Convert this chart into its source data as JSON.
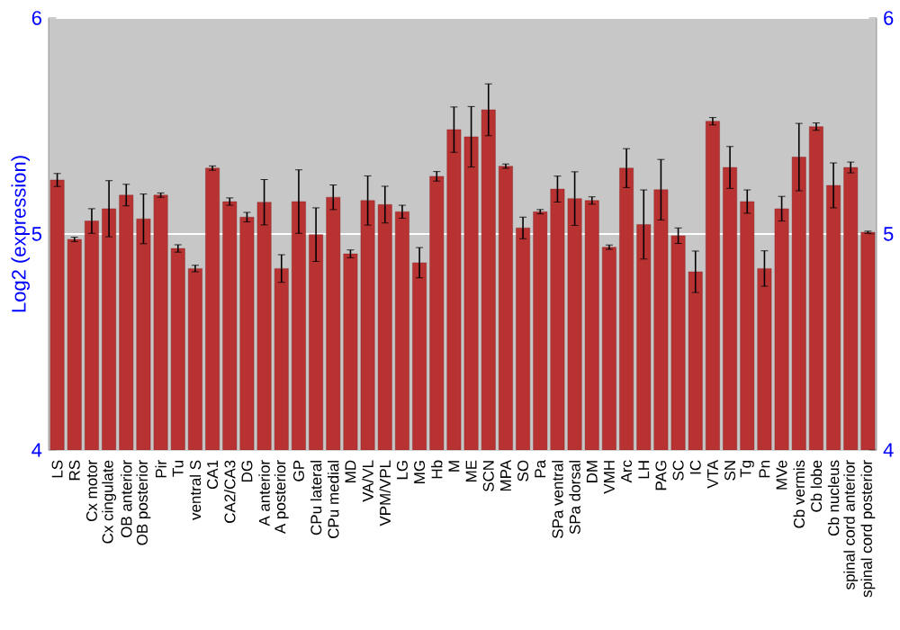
{
  "chart_data": {
    "type": "bar",
    "ylabel": "Log2 (expression)",
    "color": "#b83232",
    "categories": [
      "LS",
      "RS",
      "Cx motor",
      "Cx cingulate",
      "OB anterior",
      "OB posterior",
      "Pir",
      "Tu",
      "ventral S",
      "CA1",
      "CA2/CA3",
      "DG",
      "A anterior",
      "A posterior",
      "GP",
      "CPu lateral",
      "CPu medial",
      "MD",
      "VA/VL",
      "VPM/VPL",
      "LG",
      "MG",
      "Hb",
      "M",
      "ME",
      "SCN",
      "MPA",
      "SO",
      "Pa",
      "SPa ventral",
      "SPa dorsal",
      "DM",
      "VMH",
      "Arc",
      "LH",
      "PAG",
      "SC",
      "IC",
      "VTA",
      "SN",
      "Tg",
      "Pn",
      "MVe",
      "Cb vermis",
      "Cb lobe",
      "Cb nucleus",
      "spinal cord anterior",
      "spinal cord posterior"
    ],
    "values": [
      5.25,
      4.975,
      5.06,
      5.117,
      5.18,
      5.07,
      5.18,
      4.933,
      4.84,
      5.305,
      5.15,
      5.078,
      5.147,
      4.84,
      5.15,
      4.997,
      5.17,
      4.908,
      5.155,
      5.136,
      5.103,
      4.867,
      5.267,
      5.483,
      5.45,
      5.575,
      5.314,
      5.028,
      5.103,
      5.208,
      5.164,
      5.155,
      4.939,
      5.305,
      5.044,
      5.205,
      4.992,
      4.825,
      5.522,
      5.308,
      5.15,
      4.84,
      5.117,
      5.356,
      5.497,
      5.225,
      5.308,
      5.008
    ],
    "errors": [
      0.03,
      0.01,
      0.057,
      0.13,
      0.05,
      0.115,
      0.01,
      0.017,
      0.015,
      0.01,
      0.017,
      0.022,
      0.105,
      0.064,
      0.147,
      0.124,
      0.057,
      0.018,
      0.114,
      0.085,
      0.03,
      0.07,
      0.022,
      0.105,
      0.14,
      0.12,
      0.01,
      0.05,
      0.01,
      0.06,
      0.124,
      0.017,
      0.01,
      0.09,
      0.16,
      0.14,
      0.036,
      0.096,
      0.017,
      0.097,
      0.054,
      0.082,
      0.057,
      0.156,
      0.017,
      0.104,
      0.025,
      0.005
    ],
    "ylim": [
      4,
      6
    ],
    "yticks": [
      4,
      5,
      6
    ],
    "y2lim": [
      4,
      6
    ],
    "y2ticks": [
      4,
      5,
      6
    ],
    "grid": "y"
  }
}
